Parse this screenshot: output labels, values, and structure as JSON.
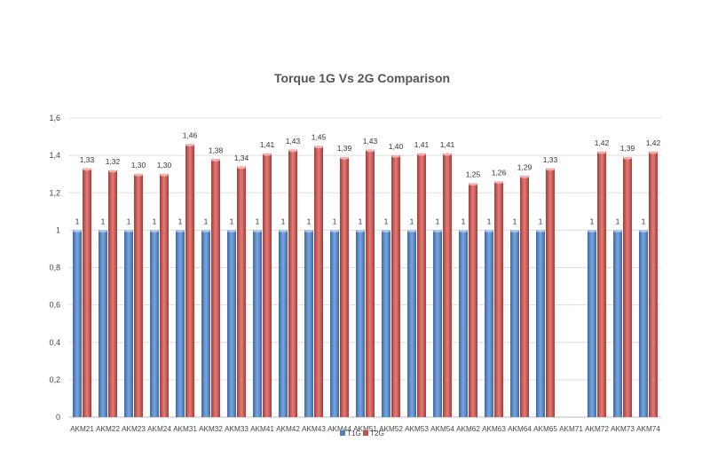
{
  "chart_data": {
    "type": "bar",
    "title": "Torque 1G Vs 2G Comparison",
    "xlabel": "",
    "ylabel": "",
    "ylim": [
      0,
      1.6
    ],
    "yticks": [
      "0",
      "0,2",
      "0,4",
      "0,6",
      "0,8",
      "1",
      "1,2",
      "1,4",
      "1,6"
    ],
    "grid": true,
    "legend": "bottom",
    "categories": [
      "AKM21",
      "AKM22",
      "AKM23",
      "AKM24",
      "AKM31",
      "AKM32",
      "AKM33",
      "AKM41",
      "AKM42",
      "AKM43",
      "AKM44",
      "AKM51",
      "AKM52",
      "AKM53",
      "AKM54",
      "AKM62",
      "AKM63",
      "AKM64",
      "AKM65",
      "AKM71",
      "AKM72",
      "AKM73",
      "AKM74"
    ],
    "series": [
      {
        "name": "T1G",
        "color": "#4f81bd",
        "values": [
          1,
          1,
          1,
          1,
          1,
          1,
          1,
          1,
          1,
          1,
          1,
          1,
          1,
          1,
          1,
          1,
          1,
          1,
          1,
          null,
          1,
          1,
          1
        ],
        "labels": [
          "1",
          "1",
          "1",
          "1",
          "1",
          "1",
          "1",
          "1",
          "1",
          "1",
          "1",
          "1",
          "1",
          "1",
          "1",
          "1",
          "1",
          "1",
          "1",
          "",
          "1",
          "1",
          "1"
        ]
      },
      {
        "name": "T2G",
        "color": "#c0504d",
        "values": [
          1.33,
          1.32,
          1.3,
          1.3,
          1.46,
          1.38,
          1.34,
          1.41,
          1.43,
          1.45,
          1.39,
          1.43,
          1.4,
          1.41,
          1.41,
          1.25,
          1.26,
          1.29,
          1.33,
          null,
          1.42,
          1.39,
          1.42
        ],
        "labels": [
          "1,33",
          "1,32",
          "1,30",
          "1,30",
          "1,46",
          "1,38",
          "1,34",
          "1,41",
          "1,43",
          "1,45",
          "1,39",
          "1,43",
          "1,40",
          "1,41",
          "1,41",
          "1,25",
          "1,26",
          "1,29",
          "1,33",
          "",
          "1,42",
          "1,39",
          "1,42"
        ]
      }
    ]
  }
}
